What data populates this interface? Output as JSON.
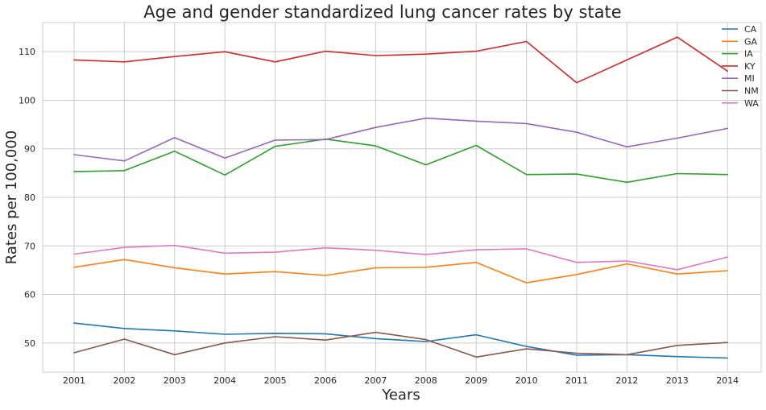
{
  "chart_data": {
    "type": "line",
    "title": "Age and gender standardized lung cancer rates by state",
    "xlabel": "Years",
    "ylabel": "Rates per 100,000",
    "x": [
      "2001",
      "2002",
      "2003",
      "2004",
      "2005",
      "2006",
      "2007",
      "2008",
      "2009",
      "2010",
      "2011",
      "2012",
      "2013",
      "2014"
    ],
    "yticks": [
      "50",
      "60",
      "70",
      "80",
      "90",
      "100",
      "110"
    ],
    "ylim": [
      44,
      116
    ],
    "grid": true,
    "legend_position": "top-right",
    "series": [
      {
        "name": "CA",
        "color": "#1f77b4",
        "values": [
          54.1,
          53.0,
          52.5,
          51.8,
          52.0,
          51.9,
          50.9,
          50.3,
          51.7,
          49.3,
          47.5,
          47.6,
          47.2,
          46.9
        ]
      },
      {
        "name": "GA",
        "color": "#ff7f0e",
        "values": [
          65.6,
          67.2,
          65.5,
          64.2,
          64.7,
          63.9,
          65.5,
          65.6,
          66.6,
          62.4,
          64.1,
          66.3,
          64.2,
          64.9
        ]
      },
      {
        "name": "IA",
        "color": "#2ca02c",
        "values": [
          85.3,
          85.5,
          89.5,
          84.6,
          90.5,
          92.0,
          90.6,
          86.7,
          90.7,
          84.7,
          84.8,
          83.1,
          84.9,
          84.7
        ]
      },
      {
        "name": "KY",
        "color": "#d62728",
        "values": [
          108.3,
          107.9,
          109.0,
          110.0,
          107.9,
          110.1,
          109.2,
          109.5,
          110.1,
          112.1,
          103.6,
          108.3,
          113.0,
          106.0
        ]
      },
      {
        "name": "MI",
        "color": "#9467bd",
        "values": [
          88.8,
          87.5,
          92.3,
          88.1,
          91.8,
          91.9,
          94.4,
          96.3,
          95.7,
          95.2,
          93.4,
          90.4,
          92.2,
          94.2
        ]
      },
      {
        "name": "NM",
        "color": "#8c564b",
        "values": [
          48.0,
          50.8,
          47.6,
          50.0,
          51.3,
          50.6,
          52.2,
          50.7,
          47.1,
          48.8,
          47.9,
          47.6,
          49.5,
          50.1
        ]
      },
      {
        "name": "WA",
        "color": "#e377c2",
        "values": [
          68.3,
          69.7,
          70.1,
          68.5,
          68.7,
          69.6,
          69.1,
          68.2,
          69.2,
          69.4,
          66.6,
          66.9,
          65.1,
          67.7
        ]
      }
    ]
  }
}
